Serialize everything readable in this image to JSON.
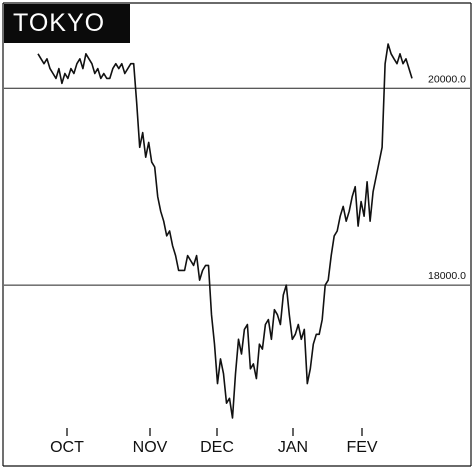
{
  "chart_data": {
    "type": "line",
    "title": "TOKYO",
    "xlabel": "",
    "ylabel": "",
    "categories": [
      "OCT",
      "NOV",
      "DEC",
      "JAN",
      "FEV"
    ],
    "reference_lines": [
      {
        "value": 20000.0,
        "label": "20000.0"
      },
      {
        "value": 18000.0,
        "label": "18000.0"
      }
    ],
    "ylim": [
      16650,
      20450
    ],
    "grid": false,
    "legend": "none",
    "series": [
      {
        "color": "#111111",
        "x": [
          0,
          1,
          2,
          3,
          4,
          5,
          6,
          7,
          8,
          9,
          10,
          11,
          12,
          13,
          14,
          15,
          16,
          17,
          18,
          19,
          20,
          21,
          22,
          23,
          24,
          25,
          26,
          27,
          28,
          29,
          30,
          31,
          32,
          33,
          34,
          35,
          36,
          37,
          38,
          39,
          40,
          41,
          42,
          43,
          44,
          45,
          46,
          47,
          48,
          49,
          50,
          51,
          52,
          53,
          54,
          55,
          56,
          57,
          58,
          59,
          60,
          61,
          62,
          63,
          64,
          65,
          66,
          67,
          68,
          69,
          70,
          71,
          72,
          73,
          74,
          75,
          76,
          77,
          78,
          79,
          80,
          81,
          82,
          83,
          84,
          85,
          86,
          87,
          88,
          89,
          90,
          91,
          92,
          93,
          94,
          95,
          96,
          97,
          98,
          99,
          100,
          101,
          102,
          103,
          104,
          105,
          106,
          107,
          108,
          109,
          110,
          111,
          112,
          113,
          114,
          115,
          116,
          117,
          118,
          119,
          120,
          121,
          122,
          123,
          124,
          125
        ],
        "values": [
          20350,
          20300,
          20250,
          20300,
          20200,
          20150,
          20100,
          20200,
          20050,
          20150,
          20100,
          20200,
          20150,
          20250,
          20300,
          20200,
          20350,
          20300,
          20250,
          20150,
          20200,
          20100,
          20150,
          20100,
          20100,
          20200,
          20250,
          20200,
          20250,
          20150,
          20200,
          20250,
          20250,
          19850,
          19400,
          19550,
          19300,
          19450,
          19250,
          19200,
          18900,
          18750,
          18650,
          18500,
          18550,
          18400,
          18300,
          18150,
          18150,
          18150,
          18300,
          18250,
          18200,
          18300,
          18050,
          18150,
          18200,
          18200,
          17700,
          17400,
          17000,
          17250,
          17100,
          16800,
          16850,
          16650,
          17100,
          17450,
          17300,
          17550,
          17600,
          17150,
          17200,
          17050,
          17400,
          17350,
          17600,
          17650,
          17450,
          17750,
          17700,
          17600,
          17900,
          18000,
          17700,
          17450,
          17500,
          17600,
          17450,
          17550,
          17000,
          17150,
          17400,
          17500,
          17500,
          17650,
          18000,
          18050,
          18300,
          18500,
          18550,
          18700,
          18800,
          18650,
          18750,
          18900,
          19000,
          18600,
          18850,
          18700,
          19050,
          18650,
          18950,
          19100,
          19250,
          19400,
          20250,
          20450,
          20350,
          20300,
          20250,
          20350,
          20250,
          20300,
          20200,
          20100
        ]
      }
    ]
  }
}
